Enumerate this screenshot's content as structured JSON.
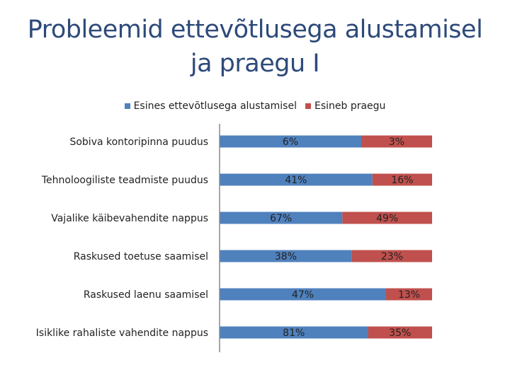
{
  "title_line1": "Probleemid ettevõtlusega alustamisel",
  "title_line2": "ja praegu I",
  "colors": {
    "series1": "#4f81bd",
    "series2": "#c0504d",
    "axis": "#888888",
    "title": "#2e4a7a"
  },
  "chart_data": {
    "type": "bar",
    "orientation": "horizontal",
    "stacked": "100%",
    "categories": [
      "Sobiva kontoripinna puudus",
      "Tehnoloogiliste teadmiste puudus",
      "Vajalike käibevahendite nappus",
      "Raskused toetuse saamisel",
      "Raskused laenu saamisel",
      "Isiklike rahaliste vahendite nappus"
    ],
    "series": [
      {
        "name": "Esines ettevõtlusega alustamisel",
        "values": [
          6,
          41,
          67,
          38,
          47,
          81
        ],
        "labels": [
          "6%",
          "41%",
          "67%",
          "38%",
          "47%",
          "81%"
        ]
      },
      {
        "name": "Esineb praegu",
        "values": [
          3,
          16,
          49,
          23,
          13,
          35
        ],
        "labels": [
          "3%",
          "16%",
          "49%",
          "23%",
          "13%",
          "35%"
        ]
      }
    ],
    "legend_position": "top",
    "grid": false
  }
}
